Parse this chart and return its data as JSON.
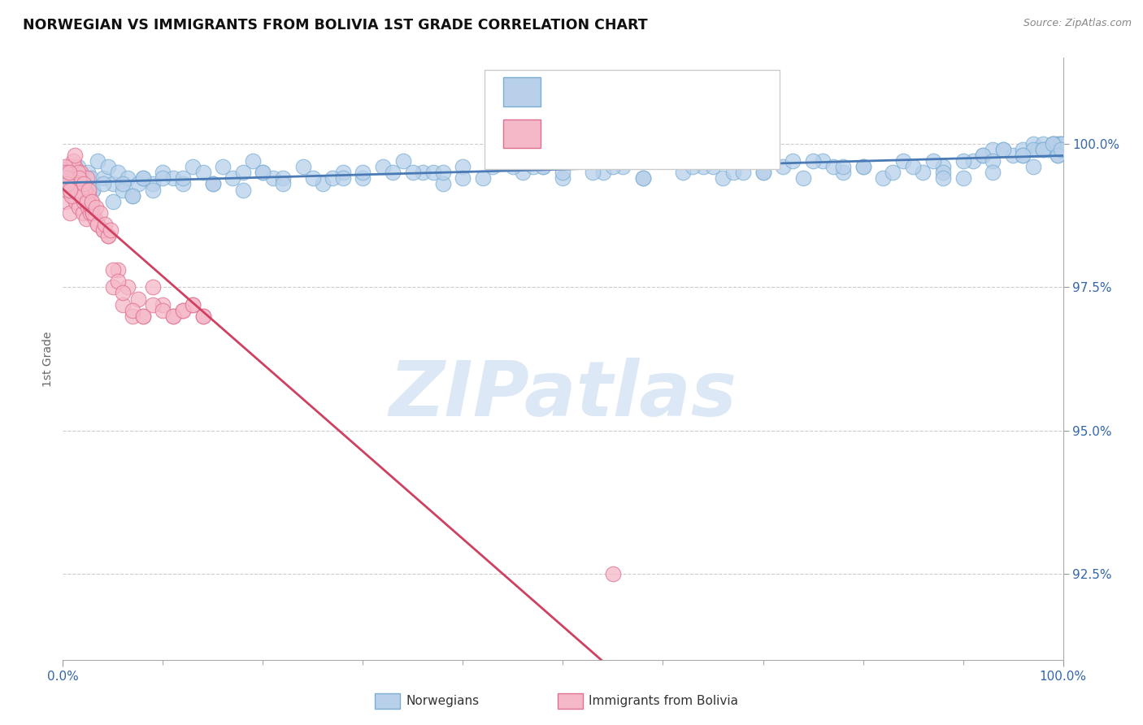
{
  "title": "NORWEGIAN VS IMMIGRANTS FROM BOLIVIA 1ST GRADE CORRELATION CHART",
  "source_text": "Source: ZipAtlas.com",
  "ylabel": "1st Grade",
  "ytick_values": [
    92.5,
    95.0,
    97.5,
    100.0
  ],
  "xmin": 0.0,
  "xmax": 100.0,
  "ymin": 91.0,
  "ymax": 101.5,
  "legend_label_blue": "Norwegians",
  "legend_label_pink": "Immigrants from Bolivia",
  "blue_color": "#b8d0ea",
  "blue_edge_color": "#7aafd4",
  "pink_color": "#f5b8c8",
  "pink_edge_color": "#e07090",
  "trendline_blue_color": "#4a7ab5",
  "trendline_pink_color": "#d04060",
  "watermark_text": "ZIPatlas",
  "watermark_color": "#dce8f5",
  "blue_scatter_x": [
    0.3,
    0.5,
    0.8,
    1.0,
    1.2,
    1.5,
    1.8,
    2.0,
    2.2,
    2.5,
    2.8,
    3.0,
    3.5,
    4.0,
    4.5,
    5.0,
    5.5,
    6.0,
    6.5,
    7.0,
    7.5,
    8.0,
    9.0,
    10.0,
    11.0,
    12.0,
    13.0,
    14.0,
    15.0,
    16.0,
    17.0,
    18.0,
    19.0,
    20.0,
    21.0,
    22.0,
    24.0,
    26.0,
    28.0,
    30.0,
    32.0,
    34.0,
    36.0,
    38.0,
    40.0,
    42.0,
    44.0,
    46.0,
    48.0,
    50.0,
    52.0,
    54.0,
    56.0,
    58.0,
    60.0,
    62.0,
    64.0,
    66.0,
    68.0,
    70.0,
    72.0,
    74.0,
    76.0,
    78.0,
    80.0,
    82.0,
    84.0,
    86.0,
    88.0,
    90.0,
    91.0,
    92.0,
    93.0,
    94.0,
    95.0,
    96.0,
    97.0,
    97.5,
    98.0,
    98.5,
    99.0,
    99.2,
    99.4,
    99.5,
    99.6,
    99.7,
    99.8,
    99.9,
    2.0,
    3.0,
    4.0,
    5.0,
    6.0,
    7.0,
    8.0,
    9.0,
    10.0,
    15.0,
    20.0,
    25.0,
    30.0,
    35.0,
    40.0,
    45.0,
    50.0,
    55.0,
    60.0,
    65.0,
    70.0,
    75.0,
    80.0,
    85.0,
    88.0,
    90.0,
    92.0,
    94.0,
    96.0,
    97.0,
    98.0,
    99.0,
    99.5,
    33.0,
    43.0,
    53.0,
    63.0,
    73.0,
    83.0,
    93.0,
    27.0,
    37.0,
    47.0,
    57.0,
    67.0,
    77.0,
    87.0,
    96.0,
    98.0,
    99.0,
    99.5,
    99.8,
    12.0,
    18.0,
    22.0,
    28.0,
    38.0,
    48.0,
    58.0,
    68.0,
    78.0,
    88.0,
    93.0,
    97.0
  ],
  "blue_scatter_y": [
    99.5,
    99.4,
    99.6,
    99.3,
    99.5,
    99.6,
    99.2,
    99.4,
    99.3,
    99.5,
    99.4,
    99.2,
    99.7,
    99.4,
    99.6,
    99.3,
    99.5,
    99.2,
    99.4,
    99.1,
    99.3,
    99.4,
    99.3,
    99.5,
    99.4,
    99.3,
    99.6,
    99.5,
    99.3,
    99.6,
    99.4,
    99.2,
    99.7,
    99.5,
    99.4,
    99.4,
    99.6,
    99.3,
    99.5,
    99.4,
    99.6,
    99.7,
    99.5,
    99.3,
    99.6,
    99.4,
    99.7,
    99.5,
    99.6,
    99.4,
    99.7,
    99.5,
    99.6,
    99.4,
    99.7,
    99.5,
    99.6,
    99.4,
    99.7,
    99.5,
    99.6,
    99.4,
    99.7,
    99.5,
    99.6,
    99.4,
    99.7,
    99.5,
    99.6,
    99.4,
    99.7,
    99.8,
    99.9,
    99.9,
    99.8,
    99.9,
    100.0,
    99.9,
    100.0,
    99.9,
    100.0,
    100.0,
    99.9,
    100.0,
    99.9,
    100.0,
    100.0,
    100.0,
    99.1,
    99.2,
    99.3,
    99.0,
    99.3,
    99.1,
    99.4,
    99.2,
    99.4,
    99.3,
    99.5,
    99.4,
    99.5,
    99.5,
    99.4,
    99.6,
    99.5,
    99.6,
    99.7,
    99.6,
    99.5,
    99.7,
    99.6,
    99.6,
    99.5,
    99.7,
    99.8,
    99.9,
    99.8,
    99.9,
    99.9,
    100.0,
    99.8,
    99.5,
    99.6,
    99.5,
    99.6,
    99.7,
    99.5,
    99.7,
    99.4,
    99.5,
    99.6,
    99.7,
    99.5,
    99.6,
    99.7,
    99.8,
    99.9,
    100.0,
    99.8,
    99.9,
    99.4,
    99.5,
    99.3,
    99.4,
    99.5,
    99.6,
    99.4,
    99.5,
    99.6,
    99.4,
    99.5,
    99.6
  ],
  "pink_scatter_x": [
    0.1,
    0.2,
    0.3,
    0.4,
    0.5,
    0.6,
    0.7,
    0.8,
    0.9,
    1.0,
    1.1,
    1.2,
    1.3,
    1.4,
    1.5,
    1.6,
    1.7,
    1.8,
    1.9,
    2.0,
    2.1,
    2.2,
    2.3,
    2.4,
    2.5,
    2.6,
    2.7,
    2.8,
    2.9,
    3.0,
    3.2,
    3.5,
    4.0,
    4.5,
    5.0,
    5.5,
    6.0,
    6.5,
    7.0,
    7.5,
    8.0,
    9.0,
    10.0,
    11.0,
    12.0,
    13.0,
    14.0,
    0.5,
    0.8,
    1.0,
    1.2,
    1.5,
    1.8,
    2.0,
    2.2,
    2.5,
    2.8,
    3.0,
    3.5,
    4.0,
    4.5,
    5.0,
    5.5,
    6.0,
    7.0,
    8.0,
    9.0,
    10.0,
    11.0,
    12.0,
    13.0,
    14.0,
    0.4,
    0.6,
    0.9,
    1.1,
    1.4,
    1.6,
    1.9,
    2.1,
    2.4,
    2.6,
    2.9,
    3.3,
    3.7,
    4.2,
    4.8,
    55.0,
    0.2,
    0.3,
    0.4,
    0.5,
    0.6,
    0.7
  ],
  "pink_scatter_y": [
    99.3,
    99.5,
    99.0,
    99.4,
    99.2,
    99.6,
    98.8,
    99.3,
    99.5,
    99.1,
    99.4,
    99.6,
    99.0,
    99.2,
    99.4,
    98.9,
    99.3,
    99.5,
    99.1,
    98.8,
    99.0,
    99.2,
    98.7,
    99.4,
    98.9,
    99.1,
    98.8,
    99.0,
    98.9,
    98.8,
    98.7,
    98.6,
    98.5,
    98.4,
    97.5,
    97.8,
    97.2,
    97.5,
    97.0,
    97.3,
    97.0,
    97.5,
    97.2,
    97.0,
    97.1,
    97.2,
    97.0,
    99.2,
    99.4,
    99.7,
    99.8,
    99.5,
    99.3,
    99.1,
    99.2,
    99.0,
    98.9,
    98.8,
    98.6,
    98.5,
    98.4,
    97.8,
    97.6,
    97.4,
    97.1,
    97.0,
    97.2,
    97.1,
    97.0,
    97.1,
    97.2,
    97.0,
    99.2,
    99.4,
    99.1,
    99.3,
    99.2,
    99.4,
    99.1,
    99.3,
    99.0,
    99.2,
    99.0,
    98.9,
    98.8,
    98.6,
    98.5,
    92.5,
    99.6,
    99.5,
    99.4,
    99.3,
    99.5,
    99.2
  ]
}
